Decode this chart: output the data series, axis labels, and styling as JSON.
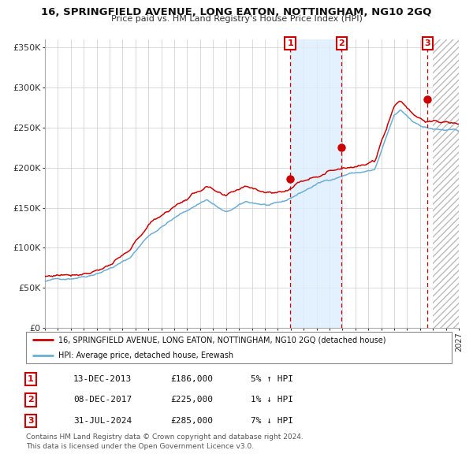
{
  "title": "16, SPRINGFIELD AVENUE, LONG EATON, NOTTINGHAM, NG10 2GQ",
  "subtitle": "Price paid vs. HM Land Registry's House Price Index (HPI)",
  "xlim_start": 1995.0,
  "xlim_end": 2027.0,
  "ylim": [
    0,
    360000
  ],
  "yticks": [
    0,
    50000,
    100000,
    150000,
    200000,
    250000,
    300000,
    350000
  ],
  "ytick_labels": [
    "£0",
    "£50K",
    "£100K",
    "£150K",
    "£200K",
    "£250K",
    "£300K",
    "£350K"
  ],
  "sale_dates": [
    "13-DEC-2013",
    "08-DEC-2017",
    "31-JUL-2024"
  ],
  "sale_prices": [
    186000,
    225000,
    285000
  ],
  "sale_hpi_pct": [
    "5% ↑ HPI",
    "1% ↓ HPI",
    "7% ↓ HPI"
  ],
  "sale_years": [
    2013.96,
    2017.94,
    2024.58
  ],
  "future_start": 2025.0,
  "red_line_color": "#cc0000",
  "blue_line_color": "#6aaed6",
  "shade_color": "#ddeeff",
  "legend_red_label": "16, SPRINGFIELD AVENUE, LONG EATON, NOTTINGHAM, NG10 2GQ (detached house)",
  "legend_blue_label": "HPI: Average price, detached house, Erewash",
  "footer1": "Contains HM Land Registry data © Crown copyright and database right 2024.",
  "footer2": "This data is licensed under the Open Government Licence v3.0.",
  "xtick_years": [
    1995,
    1996,
    1997,
    1998,
    1999,
    2000,
    2001,
    2002,
    2003,
    2004,
    2005,
    2006,
    2007,
    2008,
    2009,
    2010,
    2011,
    2012,
    2013,
    2014,
    2015,
    2016,
    2017,
    2018,
    2019,
    2020,
    2021,
    2022,
    2023,
    2024,
    2025,
    2026,
    2027
  ]
}
